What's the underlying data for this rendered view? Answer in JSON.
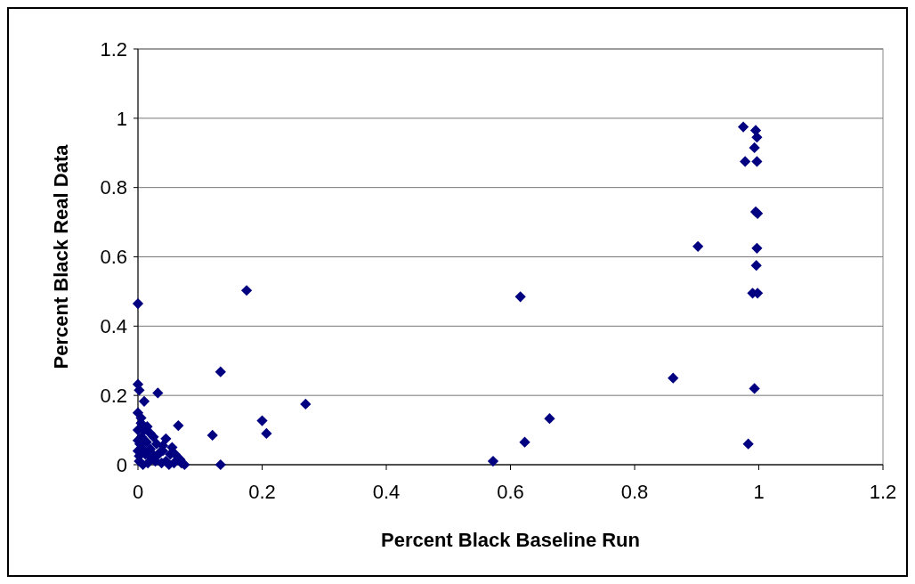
{
  "chart_data": {
    "type": "scatter",
    "xlabel": "Percent Black Baseline Run",
    "ylabel": "Percent Black Real Data",
    "color": "#000080",
    "marker": "diamond",
    "grid": "y",
    "xlim": [
      0,
      1.2
    ],
    "xticks": [
      0,
      0.2,
      0.4,
      0.6,
      0.8,
      1,
      1.2
    ],
    "ylim": [
      0,
      1.2
    ],
    "yticks": [
      0,
      0.2,
      0.4,
      0.6,
      0.8,
      1,
      1.2
    ],
    "x": [
      0.975,
      0.995,
      0.997,
      0.993,
      0.978,
      0.997,
      0.995,
      0.998,
      0.997,
      0.996,
      0.99,
      0.998,
      0.993,
      0.983,
      0.902,
      0.862,
      0.616,
      0.572,
      0.623,
      0.663,
      0.175,
      0.133,
      0.27,
      0.2,
      0.207,
      0.12,
      0.133,
      0.065,
      0.032,
      0,
      0,
      0.002,
      0.01,
      0,
      0.005,
      0.075,
      0.045,
      0.055,
      0.06,
      0.068,
      0.04,
      0.03,
      0.02,
      0.015,
      0.025,
      0.01,
      0.005,
      0,
      0,
      0,
      0.002,
      0.008,
      0.012,
      0.022,
      0.028,
      0.035,
      0.038,
      0.045,
      0.05,
      0.058,
      0.003,
      0.006,
      0.014,
      0.02,
      0.03,
      0.04,
      0.016,
      0.024,
      0.002,
      0.008,
      0.052,
      0.07
    ],
    "values": [
      0.975,
      0.965,
      0.945,
      0.915,
      0.875,
      0.875,
      0.73,
      0.725,
      0.625,
      0.575,
      0.495,
      0.495,
      0.22,
      0.06,
      0.63,
      0.25,
      0.485,
      0.01,
      0.065,
      0.133,
      0.503,
      0.268,
      0.175,
      0.127,
      0.09,
      0.085,
      0,
      0.113,
      0.207,
      0.465,
      0.232,
      0.215,
      0.183,
      0.15,
      0.135,
      0,
      0.075,
      0.05,
      0.03,
      0.015,
      0.04,
      0.06,
      0.09,
      0.11,
      0.08,
      0.1,
      0.12,
      0.1,
      0.07,
      0.04,
      0.01,
      0,
      0.03,
      0.02,
      0.01,
      0.035,
      0.005,
      0.01,
      0,
      0.005,
      0.06,
      0.08,
      0.065,
      0.045,
      0.025,
      0.055,
      0.005,
      0.03,
      0.025,
      0.045,
      0.03,
      0.005
    ]
  }
}
